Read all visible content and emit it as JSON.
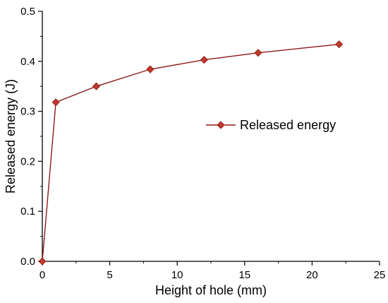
{
  "chart_data": {
    "type": "line",
    "title": "",
    "xlabel": "Height of hole (mm)",
    "ylabel": "Released energy (J)",
    "xlim": [
      0,
      25
    ],
    "ylim": [
      0.0,
      0.5
    ],
    "x_ticks": [
      0,
      5,
      10,
      15,
      20,
      25
    ],
    "y_ticks": [
      0.0,
      0.1,
      0.2,
      0.3,
      0.4,
      0.5
    ],
    "x_tick_labels": [
      "0",
      "5",
      "10",
      "15",
      "20",
      "25"
    ],
    "y_tick_labels": [
      "0.0",
      "0.1",
      "0.2",
      "0.3",
      "0.4",
      "0.5"
    ],
    "grid": false,
    "legend_position": "right",
    "series": [
      {
        "name": "Released energy",
        "x": [
          0,
          1,
          4,
          8,
          12,
          16,
          22
        ],
        "y": [
          0.0,
          0.318,
          0.35,
          0.384,
          0.403,
          0.417,
          0.434
        ],
        "line_color": "#8b1a1a",
        "marker": "diamond",
        "marker_color": "#c0392b"
      }
    ]
  }
}
